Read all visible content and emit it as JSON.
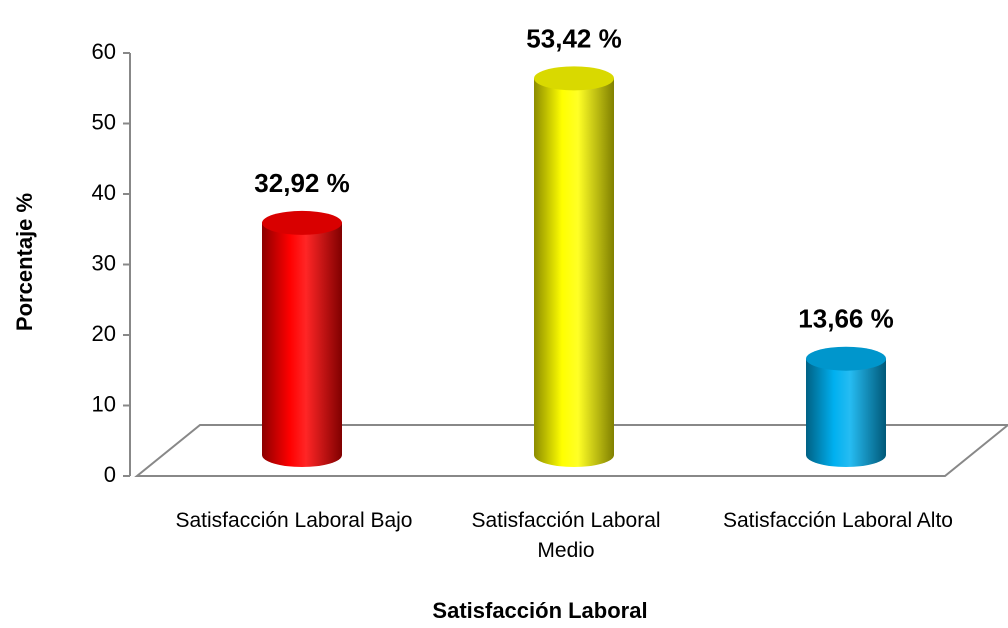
{
  "chart_data": {
    "type": "bar3d",
    "x_label": "Satisfacción Laboral",
    "y_label": "Porcentaje %",
    "categories": [
      "Satisfacción Laboral Bajo",
      "Satisfacción Laboral Medio",
      "Satisfacción Laboral Alto"
    ],
    "values": [
      32.92,
      53.42,
      13.66
    ],
    "value_labels": [
      "32,92 %",
      "53,42 %",
      "13,66 %"
    ],
    "colors": [
      "#ff0000",
      "#ffff00",
      "#00b0f0"
    ],
    "ylim": [
      0,
      60
    ],
    "yticks": [
      0,
      10,
      20,
      30,
      40,
      50,
      60
    ]
  }
}
